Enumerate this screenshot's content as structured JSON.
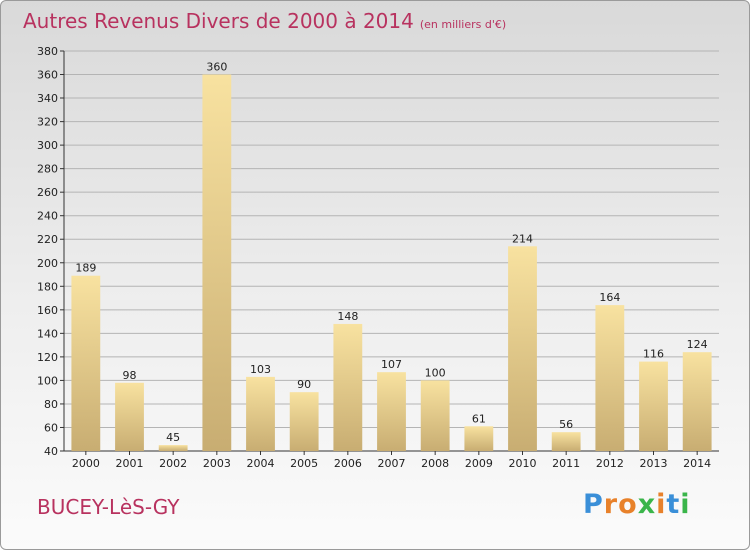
{
  "title": "Autres Revenus Divers de 2000 à 2014",
  "subtitle": "(en milliers d'€)",
  "commune": "BUCEY-LèS-GY",
  "logo": {
    "letters": [
      "P",
      "r",
      "o",
      "x",
      "i",
      "t",
      "i"
    ],
    "colors": [
      "#3a8fd8",
      "#e8812a",
      "#e8812a",
      "#3ab54a",
      "#e8812a",
      "#3a8fd8",
      "#3ab54a"
    ]
  },
  "chart_data": {
    "type": "bar",
    "categories": [
      "2000",
      "2001",
      "2002",
      "2003",
      "2004",
      "2005",
      "2006",
      "2007",
      "2008",
      "2009",
      "2010",
      "2011",
      "2012",
      "2013",
      "2014"
    ],
    "values": [
      189,
      98,
      45,
      360,
      103,
      90,
      148,
      107,
      100,
      61,
      214,
      56,
      164,
      116,
      124
    ],
    "title": "Autres Revenus Divers de 2000 à 2014",
    "subtitle": "(en milliers d'€)",
    "ylim": [
      40,
      380
    ],
    "yticks": [
      40,
      60,
      80,
      100,
      120,
      140,
      160,
      180,
      200,
      220,
      240,
      260,
      280,
      300,
      320,
      340,
      360,
      380
    ],
    "grid": true,
    "colors": {
      "bar_light": "#f8e2a0",
      "bar_dark": "#c8ad72",
      "grid": "#b4b4b4",
      "title": "#b8325f"
    }
  }
}
